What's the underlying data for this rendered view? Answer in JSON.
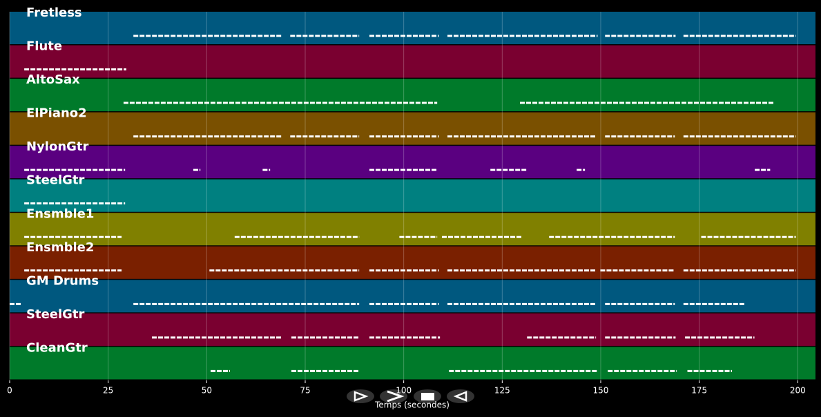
{
  "chart_data": {
    "type": "piano-roll",
    "xlabel": "Temps (secondes)",
    "xlim": [
      0,
      204.5
    ],
    "xticks": [
      0,
      25,
      50,
      75,
      100,
      125,
      150,
      175,
      200
    ],
    "grid": true,
    "tracks": [
      {
        "name": "Fretless",
        "color": "#00587f",
        "segments": [
          [
            31.4,
            68.9
          ],
          [
            71.2,
            88.7
          ],
          [
            91.3,
            108.9
          ],
          [
            111.1,
            149.2
          ],
          [
            151.1,
            169
          ],
          [
            171,
            199.5
          ]
        ]
      },
      {
        "name": "Flute",
        "color": "#7a0030",
        "segments": [
          [
            3.7,
            29.6
          ]
        ]
      },
      {
        "name": "AltoSax",
        "color": "#007a2a",
        "segments": [
          [
            28.9,
            108.5
          ],
          [
            129.5,
            193.9
          ]
        ]
      },
      {
        "name": "ElPiano2",
        "color": "#7a5000",
        "segments": [
          [
            31.4,
            68.9
          ],
          [
            71.2,
            88.7
          ],
          [
            91.3,
            108.9
          ],
          [
            111.1,
            148.8
          ],
          [
            151.1,
            168.8
          ],
          [
            171,
            199.5
          ]
        ]
      },
      {
        "name": "NylonGtr",
        "color": "#5a0080",
        "segments": [
          [
            3.7,
            29.3
          ],
          [
            46.6,
            48.4
          ],
          [
            64.2,
            66.1
          ],
          [
            91.3,
            108.5
          ],
          [
            122,
            131.1
          ],
          [
            143.9,
            146
          ],
          [
            189.1,
            193
          ]
        ]
      },
      {
        "name": "SteelGtr",
        "color": "#008080",
        "segments": [
          [
            3.7,
            29.3
          ]
        ]
      },
      {
        "name": "Ensmble1",
        "color": "#808000",
        "segments": [
          [
            3.7,
            28.4
          ],
          [
            57.1,
            88.7
          ],
          [
            98.9,
            108.5
          ],
          [
            109.7,
            129.9
          ],
          [
            136.9,
            168.8
          ],
          [
            175.5,
            199.5
          ]
        ]
      },
      {
        "name": "Ensmble2",
        "color": "#7a2000",
        "segments": [
          [
            3.7,
            28.4
          ],
          [
            50.7,
            88.7
          ],
          [
            91.3,
            108.9
          ],
          [
            111.1,
            148.8
          ],
          [
            149.9,
            168.8
          ],
          [
            171,
            199.5
          ]
        ]
      },
      {
        "name": "GM Drums",
        "color": "#00587f",
        "segments": [
          [
            0,
            2.8
          ],
          [
            31.4,
            88.7
          ],
          [
            91.3,
            108.9
          ],
          [
            111.1,
            148.8
          ],
          [
            151.1,
            168.8
          ],
          [
            171,
            186.5
          ]
        ]
      },
      {
        "name": "SteelGtr",
        "color": "#7a0030",
        "segments": [
          [
            36.1,
            68.9
          ],
          [
            71.5,
            88.7
          ],
          [
            91.3,
            109.2
          ],
          [
            131.3,
            148.8
          ],
          [
            151.1,
            169
          ],
          [
            171.4,
            189
          ]
        ]
      },
      {
        "name": "CleanGtr",
        "color": "#007a2a",
        "segments": [
          [
            51,
            55.9
          ],
          [
            71.5,
            88.7
          ],
          [
            111.5,
            149.2
          ],
          [
            151.8,
            169.3
          ],
          [
            172,
            183.3
          ]
        ]
      }
    ]
  }
}
